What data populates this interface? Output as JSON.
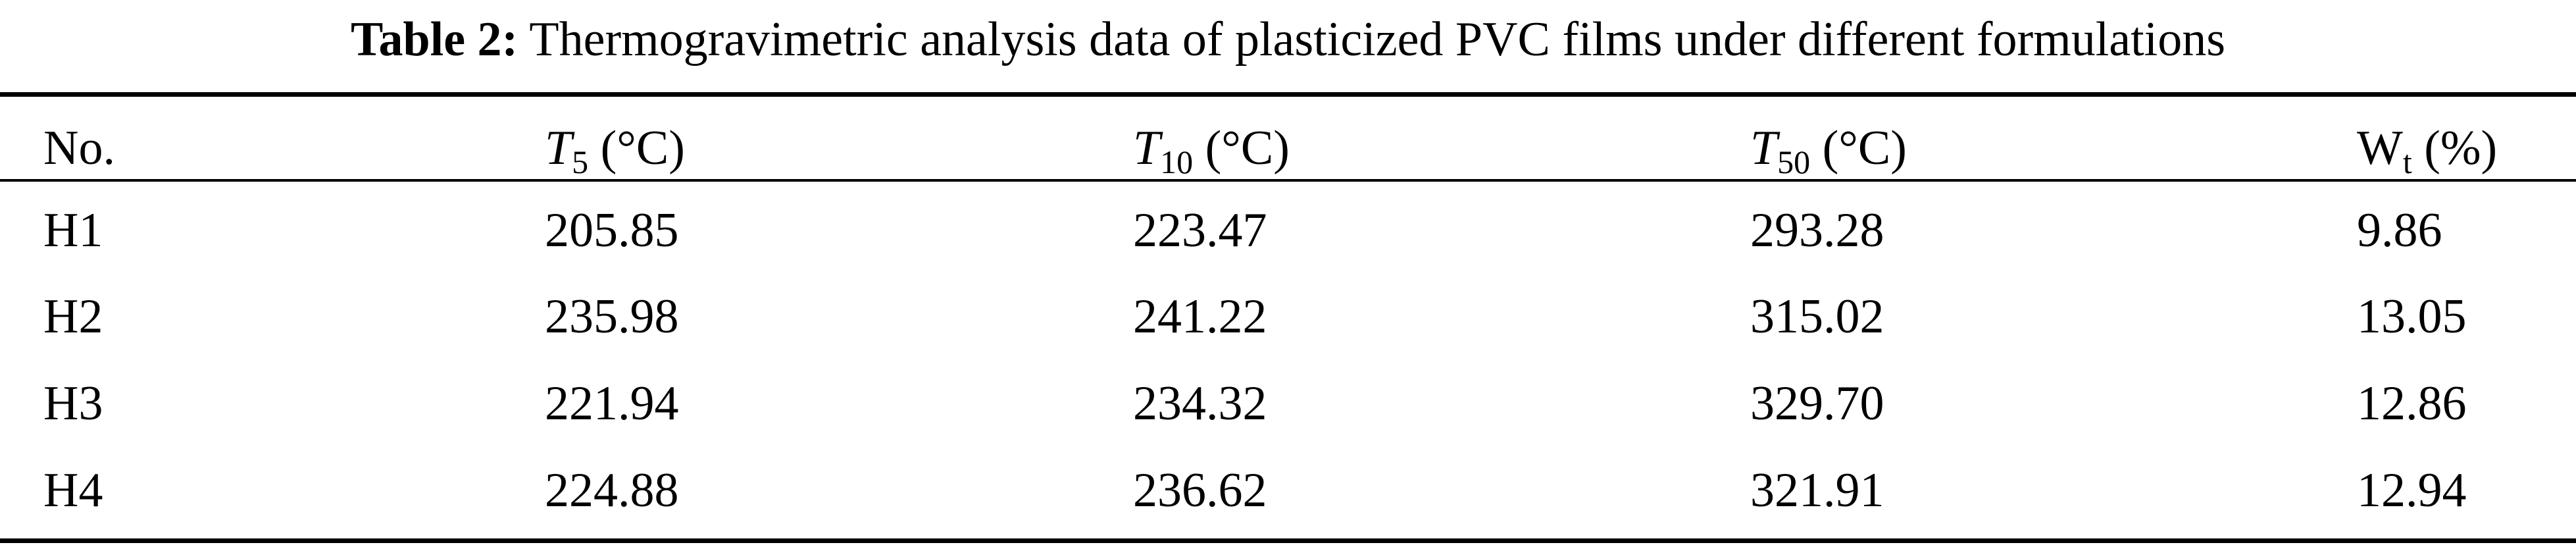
{
  "caption": {
    "label": "Table 2:",
    "text": "Thermogravimetric analysis data of plasticized PVC films under different formulations"
  },
  "table": {
    "headers": [
      {
        "main": "No.",
        "sub": "",
        "unit": ""
      },
      {
        "main": "T",
        "sub": "5",
        "unit": " (°C)"
      },
      {
        "main": "T",
        "sub": "10",
        "unit": " (°C)"
      },
      {
        "main": "T",
        "sub": "50",
        "unit": " (°C)"
      },
      {
        "main": "W",
        "sub": "t",
        "unit": " (%)"
      }
    ],
    "rows": [
      [
        "H1",
        "205.85",
        "223.47",
        "293.28",
        "9.86"
      ],
      [
        "H2",
        "235.98",
        "241.22",
        "315.02",
        "13.05"
      ],
      [
        "H3",
        "221.94",
        "234.32",
        "329.70",
        "12.86"
      ],
      [
        "H4",
        "224.88",
        "236.62",
        "321.91",
        "12.94"
      ]
    ]
  }
}
